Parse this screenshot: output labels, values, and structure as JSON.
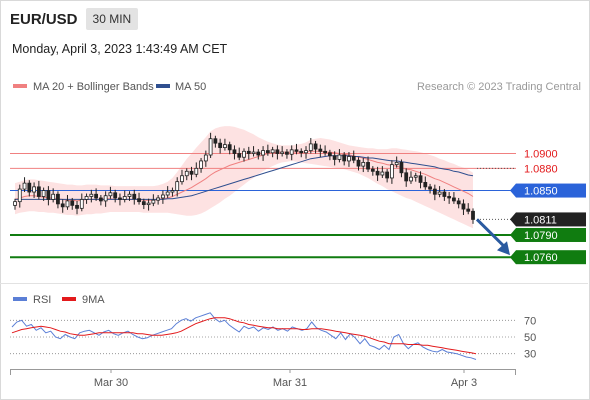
{
  "header": {
    "symbol": "EUR/USD",
    "timeframe": "30 MIN",
    "datetime": "Monday, April 3, 2023 1:43:49 AM CET"
  },
  "legend": {
    "ma20_bb": "MA 20 + Bollinger Bands",
    "ma50": "MA 50",
    "credit": "Research © 2023 Trading Central"
  },
  "colors": {
    "bullish_candle": "#222222",
    "bearish_candle": "#222222",
    "ma20": "#f08080",
    "bb_fill": "#fde2e2",
    "ma50": "#2f4f8f",
    "current_line": "#2b63d9",
    "support": "#107c10",
    "resistance": "#f08080",
    "rsi": "#5b7fd6",
    "rsi_ma": "#e31a1c",
    "arrow": "#2a5aa0"
  },
  "chart_data": [
    {
      "type": "candlestick",
      "title": "EUR/USD",
      "ylim": [
        1.074,
        1.0975
      ],
      "x_ticks": [
        "Mar 30",
        "Mar 31",
        "Apr 3"
      ],
      "levels": [
        {
          "value": 1.09,
          "label": "1.0900",
          "kind": "resistance"
        },
        {
          "value": 1.088,
          "label": "1.0880",
          "kind": "resistance"
        },
        {
          "value": 1.085,
          "label": "1.0850",
          "kind": "current"
        },
        {
          "value": 1.0811,
          "label": "1.0811",
          "kind": "last"
        },
        {
          "value": 1.079,
          "label": "1.0790",
          "kind": "support"
        },
        {
          "value": 1.076,
          "label": "1.0760",
          "kind": "support"
        }
      ],
      "close": [
        1.0835,
        1.0852,
        1.086,
        1.0848,
        1.0855,
        1.0842,
        1.085,
        1.0838,
        1.0845,
        1.0832,
        1.0828,
        1.0836,
        1.083,
        1.0826,
        1.0838,
        1.0842,
        1.0845,
        1.084,
        1.0836,
        1.0843,
        1.0847,
        1.084,
        1.0838,
        1.0842,
        1.0845,
        1.0839,
        1.0835,
        1.0831,
        1.0833,
        1.0837,
        1.084,
        1.0844,
        1.0848,
        1.085,
        1.0862,
        1.087,
        1.0876,
        1.0872,
        1.088,
        1.089,
        1.0898,
        1.092,
        1.0914,
        1.0908,
        1.0912,
        1.0905,
        1.09,
        1.0895,
        1.0903,
        1.09,
        1.0902,
        1.0898,
        1.0904,
        1.0901,
        1.0905,
        1.09,
        1.0902,
        1.0899,
        1.0905,
        1.0903,
        1.0901,
        1.0904,
        1.0913,
        1.0906,
        1.0903,
        1.0901,
        1.0897,
        1.0892,
        1.0898,
        1.089,
        1.0896,
        1.0891,
        1.0883,
        1.0888,
        1.0879,
        1.0876,
        1.0871,
        1.0875,
        1.0867,
        1.0885,
        1.0888,
        1.0874,
        1.0863,
        1.0868,
        1.087,
        1.0861,
        1.0855,
        1.0852,
        1.0845,
        1.0848,
        1.0842,
        1.084,
        1.0836,
        1.0832,
        1.0825,
        1.0822,
        1.0811
      ],
      "ma20": [
        1.0838,
        1.084,
        1.0842,
        1.0843,
        1.0843,
        1.0842,
        1.0841,
        1.084,
        1.084,
        1.0839,
        1.0838,
        1.0837,
        1.0837,
        1.0836,
        1.0837,
        1.0838,
        1.0838,
        1.0838,
        1.0838,
        1.0839,
        1.0839,
        1.0838,
        1.0838,
        1.0838,
        1.0838,
        1.0838,
        1.0838,
        1.0837,
        1.0837,
        1.0837,
        1.0838,
        1.0839,
        1.084,
        1.0842,
        1.0845,
        1.0848,
        1.0851,
        1.0854,
        1.0858,
        1.0862,
        1.0866,
        1.0871,
        1.0875,
        1.0878,
        1.0881,
        1.0884,
        1.0886,
        1.0888,
        1.089,
        1.0892,
        1.0894,
        1.0896,
        1.0898,
        1.09,
        1.0901,
        1.0902,
        1.0902,
        1.0902,
        1.0902,
        1.0902,
        1.0902,
        1.0902,
        1.0903,
        1.0903,
        1.0903,
        1.0902,
        1.0902,
        1.0901,
        1.09,
        1.0899,
        1.0898,
        1.0897,
        1.0895,
        1.0894,
        1.0892,
        1.089,
        1.0888,
        1.0887,
        1.0885,
        1.0884,
        1.0883,
        1.0881,
        1.0879,
        1.0878,
        1.0876,
        1.0874,
        1.0872,
        1.0869,
        1.0866,
        1.0864,
        1.0861,
        1.0858,
        1.0855,
        1.0852,
        1.0849,
        1.0846,
        1.0842
      ],
      "ma50": [
        1.0838,
        1.0838,
        1.0838,
        1.0838,
        1.0838,
        1.0838,
        1.0838,
        1.0838,
        1.0838,
        1.0838,
        1.0838,
        1.0838,
        1.0838,
        1.0838,
        1.0838,
        1.0838,
        1.0838,
        1.0838,
        1.0838,
        1.0838,
        1.0838,
        1.0838,
        1.0838,
        1.0838,
        1.0838,
        1.0838,
        1.0838,
        1.0838,
        1.0838,
        1.0838,
        1.0838,
        1.0838,
        1.0839,
        1.0839,
        1.084,
        1.0841,
        1.0842,
        1.0843,
        1.0845,
        1.0847,
        1.0849,
        1.0851,
        1.0853,
        1.0855,
        1.0857,
        1.0859,
        1.0861,
        1.0863,
        1.0865,
        1.0867,
        1.0869,
        1.0871,
        1.0873,
        1.0875,
        1.0877,
        1.0879,
        1.0881,
        1.0883,
        1.0885,
        1.0887,
        1.0889,
        1.0891,
        1.0893,
        1.0894,
        1.0895,
        1.0896,
        1.0897,
        1.0897,
        1.0897,
        1.0897,
        1.0897,
        1.0896,
        1.0896,
        1.0895,
        1.0894,
        1.0894,
        1.0893,
        1.0892,
        1.0891,
        1.089,
        1.089,
        1.0889,
        1.0888,
        1.0887,
        1.0886,
        1.0885,
        1.0884,
        1.0883,
        1.0882,
        1.088,
        1.0879,
        1.0878,
        1.0876,
        1.0875,
        1.0873,
        1.0871,
        1.087
      ],
      "bb_upper": [
        1.086,
        1.0862,
        1.0864,
        1.0865,
        1.0865,
        1.0864,
        1.0863,
        1.0862,
        1.0861,
        1.086,
        1.0859,
        1.0858,
        1.0858,
        1.0857,
        1.0857,
        1.0858,
        1.0858,
        1.0858,
        1.0857,
        1.0857,
        1.0857,
        1.0856,
        1.0856,
        1.0856,
        1.0856,
        1.0856,
        1.0856,
        1.0856,
        1.0856,
        1.0856,
        1.0857,
        1.0859,
        1.0862,
        1.0867,
        1.0875,
        1.0884,
        1.0893,
        1.09,
        1.0908,
        1.0915,
        1.0922,
        1.093,
        1.0934,
        1.0936,
        1.0937,
        1.0937,
        1.0936,
        1.0934,
        1.0932,
        1.0929,
        1.0926,
        1.0922,
        1.0919,
        1.0916,
        1.0914,
        1.0912,
        1.0911,
        1.0911,
        1.0911,
        1.0912,
        1.0913,
        1.0915,
        1.0919,
        1.092,
        1.0921,
        1.092,
        1.0919,
        1.0917,
        1.0915,
        1.0913,
        1.0911,
        1.091,
        1.0909,
        1.0908,
        1.0907,
        1.0907,
        1.0906,
        1.0906,
        1.0906,
        1.0907,
        1.0907,
        1.0906,
        1.0905,
        1.0904,
        1.0903,
        1.0902,
        1.09,
        1.0898,
        1.0896,
        1.0893,
        1.0891,
        1.0888,
        1.0886,
        1.0883,
        1.0881,
        1.0878,
        1.0874
      ],
      "bb_lower": [
        1.0818,
        1.082,
        1.0821,
        1.0822,
        1.0822,
        1.0821,
        1.0821,
        1.082,
        1.082,
        1.0819,
        1.0818,
        1.0817,
        1.0817,
        1.0816,
        1.0817,
        1.0818,
        1.0818,
        1.0819,
        1.0819,
        1.082,
        1.0821,
        1.0821,
        1.0821,
        1.0821,
        1.0821,
        1.0821,
        1.0821,
        1.082,
        1.082,
        1.082,
        1.082,
        1.082,
        1.082,
        1.0819,
        1.0818,
        1.0817,
        1.0816,
        1.0816,
        1.0817,
        1.0819,
        1.0822,
        1.0826,
        1.083,
        1.0834,
        1.0839,
        1.0843,
        1.0848,
        1.0853,
        1.0858,
        1.0863,
        1.0867,
        1.0872,
        1.0876,
        1.088,
        1.0883,
        1.0886,
        1.0888,
        1.0889,
        1.089,
        1.0889,
        1.0888,
        1.0887,
        1.0886,
        1.0885,
        1.0884,
        1.0883,
        1.0882,
        1.0881,
        1.088,
        1.0879,
        1.0877,
        1.0875,
        1.0873,
        1.087,
        1.0867,
        1.0863,
        1.0859,
        1.0856,
        1.0852,
        1.0849,
        1.0846,
        1.0843,
        1.084,
        1.0838,
        1.0835,
        1.0832,
        1.0829,
        1.0826,
        1.0823,
        1.082,
        1.0817,
        1.0814,
        1.0811,
        1.0808,
        1.0805,
        1.0802,
        1.0799
      ]
    },
    {
      "type": "line",
      "legend": [
        "RSI",
        "9MA"
      ],
      "ylim": [
        20,
        80
      ],
      "y_ticks": [
        70,
        50,
        30
      ],
      "rsi": [
        62,
        68,
        70,
        63,
        65,
        58,
        61,
        55,
        57,
        50,
        48,
        53,
        50,
        48,
        55,
        57,
        58,
        55,
        52,
        56,
        58,
        54,
        52,
        55,
        57,
        53,
        50,
        48,
        49,
        52,
        54,
        56,
        58,
        60,
        66,
        70,
        72,
        69,
        73,
        75,
        77,
        79,
        72,
        68,
        70,
        64,
        60,
        56,
        63,
        60,
        62,
        57,
        61,
        59,
        62,
        58,
        60,
        57,
        62,
        60,
        58,
        60,
        68,
        61,
        58,
        56,
        52,
        48,
        55,
        47,
        54,
        49,
        42,
        48,
        40,
        38,
        35,
        40,
        35,
        50,
        53,
        42,
        36,
        41,
        43,
        38,
        35,
        33,
        32,
        35,
        32,
        31,
        30,
        28,
        26,
        25,
        23
      ],
      "ma9": [
        55,
        57,
        59,
        60,
        61,
        62,
        63,
        62,
        61,
        59,
        57,
        56,
        54,
        53,
        52,
        52,
        53,
        54,
        55,
        55,
        55,
        55,
        55,
        55,
        55,
        55,
        54,
        54,
        53,
        52,
        52,
        52,
        53,
        54,
        55,
        57,
        60,
        63,
        66,
        68,
        70,
        72,
        73,
        73,
        73,
        72,
        70,
        68,
        67,
        65,
        64,
        63,
        62,
        61,
        61,
        60,
        60,
        60,
        60,
        60,
        59,
        59,
        60,
        60,
        60,
        59,
        58,
        57,
        56,
        55,
        54,
        53,
        52,
        51,
        49,
        47,
        45,
        44,
        42,
        42,
        42,
        42,
        41,
        41,
        41,
        40,
        40,
        39,
        38,
        37,
        36,
        35,
        34,
        33,
        32,
        31,
        30
      ]
    }
  ]
}
